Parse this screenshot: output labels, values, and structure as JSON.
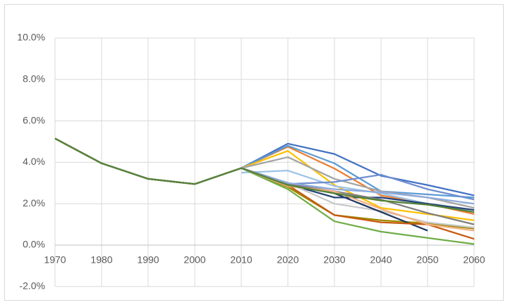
{
  "chart_data": {
    "type": "line",
    "categories": [
      "1970",
      "1980",
      "1990",
      "2000",
      "2010",
      "2020",
      "2030",
      "2040",
      "2050",
      "2060"
    ],
    "ylim": [
      -2,
      10.5
    ],
    "yticks": [
      {
        "value": -2,
        "label": "-2.0%"
      },
      {
        "value": 0,
        "label": "0.0%"
      },
      {
        "value": 2,
        "label": "2.0%"
      },
      {
        "value": 4,
        "label": "4.0%"
      },
      {
        "value": 6,
        "label": "6.0%"
      },
      {
        "value": 8,
        "label": "8.0%"
      },
      {
        "value": 10,
        "label": "10.0%"
      }
    ],
    "grid": true,
    "series": [
      {
        "color": "#4472c4",
        "values": [
          5.15,
          3.95,
          3.2,
          2.95,
          3.72,
          4.9,
          4.4,
          3.35,
          2.9,
          2.4
        ]
      },
      {
        "color": "#ed7d31",
        "values": [
          5.15,
          3.95,
          3.2,
          2.95,
          3.72,
          4.75,
          3.7,
          2.4,
          2.0,
          1.5
        ]
      },
      {
        "color": "#5b9bd5",
        "values": [
          5.15,
          3.95,
          3.2,
          2.95,
          3.72,
          4.8,
          3.95,
          2.6,
          2.45,
          2.3
        ]
      },
      {
        "color": "#ffc000",
        "values": [
          5.15,
          3.95,
          3.2,
          2.95,
          3.72,
          4.55,
          2.9,
          1.8,
          1.5,
          1.2
        ]
      },
      {
        "color": "#a5a5a5",
        "values": [
          5.15,
          3.95,
          3.2,
          2.95,
          3.72,
          4.25,
          3.2,
          2.6,
          2.3,
          1.8
        ]
      },
      {
        "color": "#9dc3e6",
        "values": [
          null,
          null,
          null,
          null,
          3.5,
          3.6,
          2.85,
          2.5,
          2.0,
          1.6
        ]
      },
      {
        "color": "#6f8fcf",
        "values": [
          5.15,
          3.95,
          3.2,
          2.95,
          3.72,
          2.95,
          3.05,
          3.4,
          2.7,
          2.2
        ]
      },
      {
        "color": "#264478",
        "values": [
          5.15,
          3.95,
          3.2,
          2.95,
          3.72,
          2.95,
          2.3,
          2.3,
          2.0,
          1.7
        ]
      },
      {
        "color": "#9e8a00",
        "values": [
          5.15,
          3.95,
          3.2,
          2.95,
          3.72,
          2.8,
          1.45,
          1.2,
          1.05,
          0.8
        ]
      },
      {
        "color": "#70ad47",
        "values": [
          5.15,
          3.95,
          3.2,
          2.95,
          3.72,
          2.7,
          1.15,
          0.65,
          0.35,
          0.05
        ]
      },
      {
        "color": "#c9c9c9",
        "values": [
          5.15,
          3.95,
          3.2,
          2.95,
          3.72,
          3.0,
          2.0,
          1.65,
          1.1,
          0.85
        ]
      },
      {
        "color": "#1f3864",
        "values": [
          5.15,
          3.95,
          3.2,
          2.95,
          3.72,
          3.0,
          2.5,
          1.6,
          0.7,
          null
        ]
      },
      {
        "color": "#c55a11",
        "values": [
          5.15,
          3.95,
          3.2,
          2.95,
          3.72,
          2.9,
          1.45,
          1.1,
          1.0,
          0.3
        ]
      },
      {
        "color": "#7f7f7f",
        "values": [
          5.15,
          3.95,
          3.2,
          2.95,
          3.72,
          2.95,
          2.6,
          2.2,
          1.55,
          1.0
        ]
      },
      {
        "color": "#f4b183",
        "values": [
          5.15,
          3.95,
          3.2,
          2.95,
          3.72,
          2.85,
          2.6,
          1.75,
          1.0,
          0.7
        ]
      },
      {
        "color": "#8faadc",
        "values": [
          5.15,
          3.95,
          3.2,
          2.95,
          3.72,
          3.0,
          2.7,
          2.55,
          2.3,
          2.0
        ]
      },
      {
        "color": "#548235",
        "values": [
          5.15,
          3.95,
          3.2,
          2.95,
          3.72,
          2.9,
          2.5,
          2.15,
          1.95,
          1.6
        ]
      }
    ]
  }
}
